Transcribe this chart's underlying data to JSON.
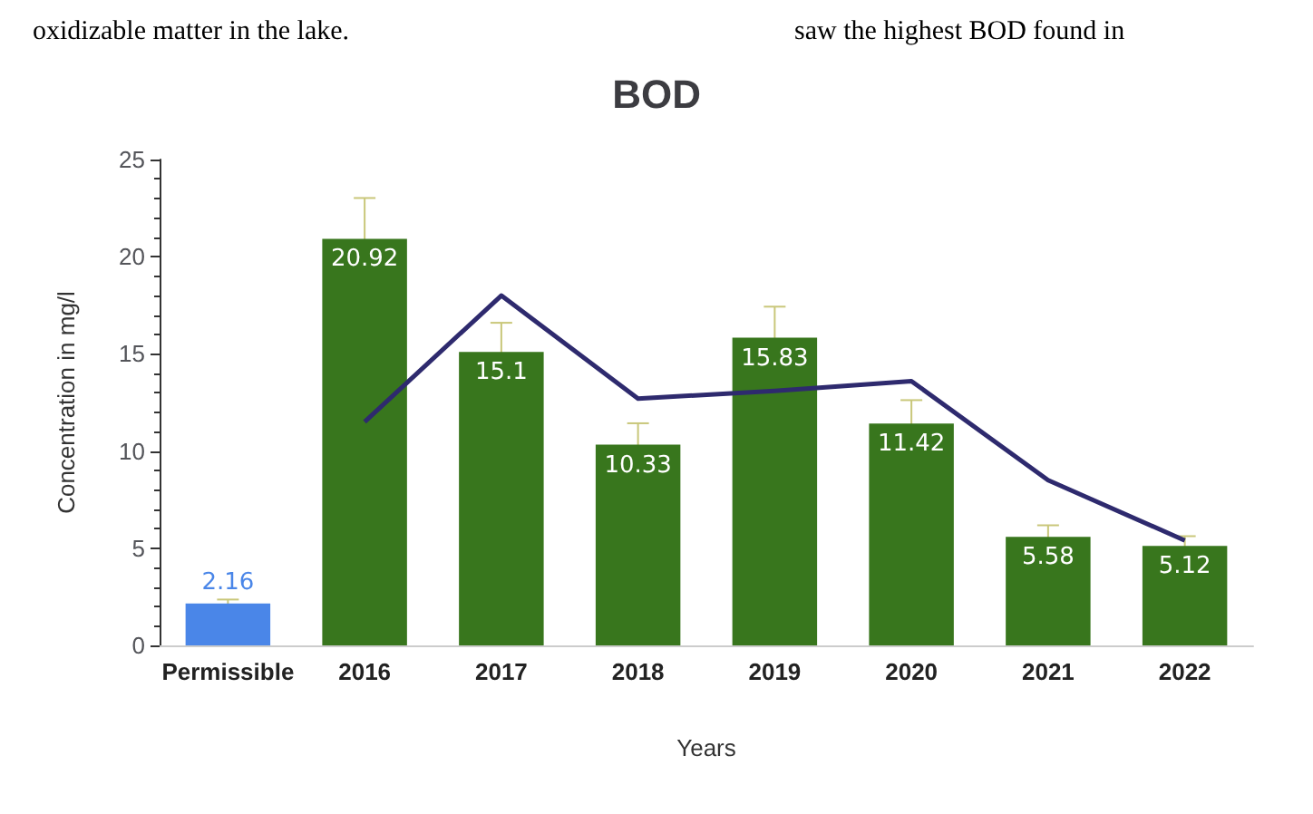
{
  "chart_data": {
    "type": "bar",
    "title": "BOD",
    "xlabel": "Years",
    "ylabel": "Concentration in mg/l",
    "annotations": [
      "oxidizable matter in the lake.",
      "saw the highest BOD found in"
    ],
    "categories": [
      "Permissible",
      "2016",
      "2017",
      "2018",
      "2019",
      "2020",
      "2021",
      "2022"
    ],
    "series": [
      {
        "values": [
          2.16,
          20.92,
          15.1,
          10.33,
          15.83,
          11.42,
          5.58,
          5.12
        ],
        "colors": [
          "#4a86e8",
          "#38761d",
          "#38761d",
          "#38761d",
          "#38761d",
          "#38761d",
          "#38761d",
          "#38761d"
        ],
        "errors": [
          0.2,
          2.1,
          1.5,
          1.1,
          1.6,
          1.2,
          0.6,
          0.5
        ],
        "data_labels": true
      },
      {
        "type": "line",
        "color": "#2e2a6e",
        "values": [
          null,
          11.5,
          18,
          12.7,
          13.1,
          13.6,
          8.5,
          5.4
        ],
        "marker": "none"
      }
    ],
    "ylim": [
      0,
      25
    ],
    "yticks": [
      0,
      5,
      10,
      15,
      20,
      25
    ],
    "grid": false
  }
}
